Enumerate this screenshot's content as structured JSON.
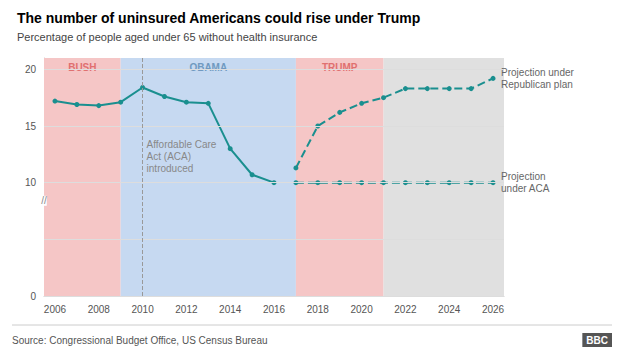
{
  "chart_data": {
    "type": "line",
    "title": "The number of uninsured Americans could rise under Trump",
    "subtitle": "Percentage of people aged under 65 without health insurance",
    "source": "Source: Congressional Budget Office, US Census Bureau",
    "credit": "BBC",
    "series": [
      {
        "x": [
          2006,
          2007,
          2008,
          2009,
          2010,
          2011,
          2012,
          2013,
          2014,
          2015,
          2016
        ],
        "values": [
          17.2,
          16.9,
          16.8,
          17.1,
          18.4,
          17.6,
          17.1,
          17.0,
          13.0,
          10.7,
          10.0
        ],
        "color": "#1a8f8f",
        "line_style": "solid",
        "marker": "circle"
      },
      {
        "name": "Projection under\nRepublican plan",
        "x": [
          2017,
          2018,
          2019,
          2020,
          2021,
          2022,
          2023,
          2024,
          2025,
          2026
        ],
        "values": [
          11.3,
          15.0,
          16.2,
          17.0,
          17.5,
          18.3,
          18.3,
          18.3,
          18.3,
          19.2
        ],
        "color": "#1a8f8f",
        "line_style": "dashed",
        "marker": "circle"
      },
      {
        "name": "Projection\nunder ACA",
        "x": [
          2017,
          2018,
          2019,
          2020,
          2021,
          2022,
          2023,
          2024,
          2025,
          2026
        ],
        "values": [
          10.0,
          10.0,
          10.0,
          10.0,
          10.0,
          10.0,
          10.0,
          10.0,
          10.0,
          10.0
        ],
        "color": "#1a8f8f",
        "line_style": "dashed",
        "marker": "circle"
      }
    ],
    "regions": [
      {
        "label": "BUSH",
        "from": 2005.5,
        "to": 2009.0,
        "color": "#f5c6c6",
        "label_color": "#e07070"
      },
      {
        "label": "OBAMA",
        "from": 2009.0,
        "to": 2017.0,
        "color": "#c6d9f1",
        "label_color": "#7099c0"
      },
      {
        "label": "TRUMP",
        "from": 2017.0,
        "to": 2021.0,
        "color": "#f5c6c6",
        "label_color": "#e07070"
      },
      {
        "from": 2021.0,
        "to": 2026.5,
        "color": "#e0e0e0"
      }
    ],
    "vlines": [
      {
        "x": 2010,
        "label": "Affordable Care\nAct (ACA)\nintroduced",
        "color": "#999999"
      }
    ],
    "annotations": [
      "//"
    ],
    "xlim": [
      2005.5,
      2026.5
    ],
    "xticks": [
      2006,
      2008,
      2010,
      2012,
      2014,
      2016,
      2018,
      2020,
      2022,
      2024,
      2026
    ],
    "ylim": [
      0,
      21
    ],
    "yticks": [
      0,
      {
        "value": 5,
        "label": null
      },
      10,
      15,
      20
    ],
    "grid": true
  }
}
